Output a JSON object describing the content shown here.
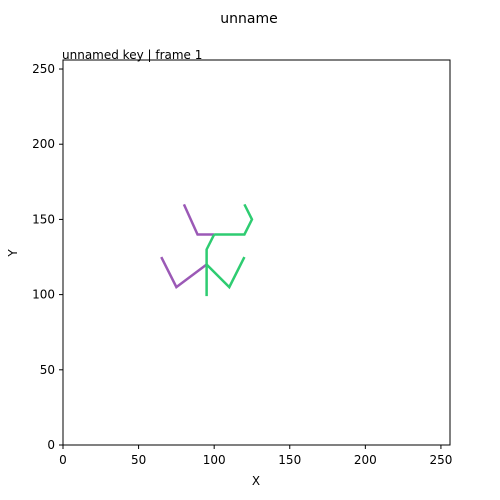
{
  "chart_data": {
    "type": "line",
    "title": "unname",
    "subtitle": "unnamed key | frame 1",
    "xlabel": "X",
    "ylabel": "Y",
    "xlim": [
      0,
      256
    ],
    "ylim": [
      0,
      256
    ],
    "xticks": [
      0,
      50,
      100,
      150,
      200,
      250
    ],
    "yticks": [
      0,
      50,
      100,
      150,
      200,
      250
    ],
    "grid": false,
    "series": [
      {
        "color": "#9b59b6",
        "segments": [
          [
            [
              80,
              160
            ],
            [
              89,
              140
            ],
            [
              100,
              140
            ]
          ],
          [
            [
              95,
              120
            ],
            [
              75,
              105
            ],
            [
              65,
              125
            ]
          ]
        ]
      },
      {
        "color": "#2ecc71",
        "segments": [
          [
            [
              100,
              140
            ],
            [
              120,
              140
            ],
            [
              125,
              150
            ],
            [
              120,
              160
            ]
          ],
          [
            [
              100,
              140
            ],
            [
              95,
              130
            ],
            [
              95,
              120
            ]
          ],
          [
            [
              95,
              120
            ],
            [
              95,
              99
            ]
          ],
          [
            [
              95,
              120
            ],
            [
              110,
              105
            ],
            [
              120,
              125
            ]
          ]
        ]
      }
    ]
  }
}
